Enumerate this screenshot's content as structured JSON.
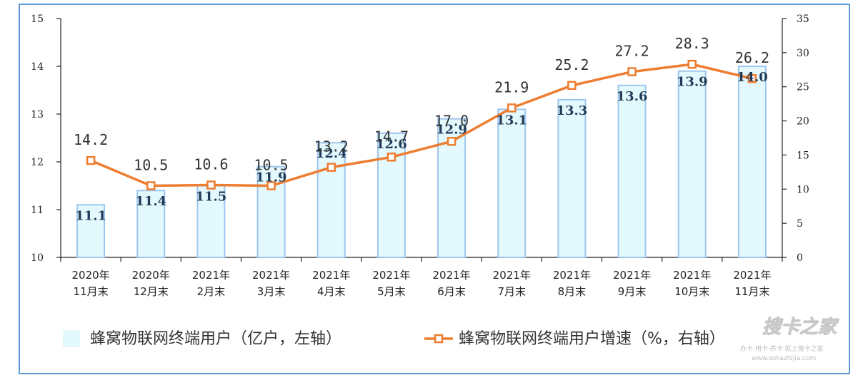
{
  "chart_data": {
    "type": "bar",
    "categories": [
      [
        "2020年",
        "11月末"
      ],
      [
        "2020年",
        "12月末"
      ],
      [
        "2021年",
        "2月末"
      ],
      [
        "2021年",
        "3月末"
      ],
      [
        "2021年",
        "4月末"
      ],
      [
        "2021年",
        "5月末"
      ],
      [
        "2021年",
        "6月末"
      ],
      [
        "2021年",
        "7月末"
      ],
      [
        "2021年",
        "8月末"
      ],
      [
        "2021年",
        "9月末"
      ],
      [
        "2021年",
        "10月末"
      ],
      [
        "2021年",
        "11月末"
      ]
    ],
    "series": [
      {
        "name": "蜂窝物联网终端用户（亿户，左轴）",
        "type": "bar",
        "axis": "left",
        "values": [
          11.1,
          11.4,
          11.5,
          11.9,
          12.4,
          12.6,
          12.9,
          13.1,
          13.3,
          13.6,
          13.9,
          14.0
        ],
        "labels": [
          "11.1",
          "11.4",
          "11.5",
          "11.9",
          "12.4",
          "12.6",
          "12.9",
          "13.1",
          "13.3",
          "13.6",
          "13.9",
          "14.0"
        ],
        "fill": "#e3f9fd",
        "stroke": "#9fc6ee"
      },
      {
        "name": "蜂窝物联网终端用户增速（%，右轴）",
        "type": "line",
        "axis": "right",
        "values": [
          14.2,
          10.5,
          10.6,
          10.5,
          13.2,
          14.7,
          17.0,
          21.9,
          25.2,
          27.2,
          28.3,
          26.2
        ],
        "labels": [
          "14.2",
          "10.5",
          "10.6",
          "10.5",
          "13.2",
          "14.7",
          "17.0",
          "21.9",
          "25.2",
          "27.2",
          "28.3",
          "26.2"
        ],
        "color": "#ed7d31"
      }
    ],
    "y_left": {
      "min": 10,
      "max": 15,
      "ticks": [
        "10",
        "11",
        "12",
        "13",
        "14",
        "15"
      ]
    },
    "y_right": {
      "min": 0,
      "max": 35,
      "ticks": [
        "0",
        "5",
        "10",
        "15",
        "20",
        "25",
        "30",
        "35"
      ]
    },
    "grid": false,
    "legend": "bottom"
  },
  "watermark": {
    "brand": "搜卡之家",
    "tagline": "办卡·用卡·养卡·就上搜卡之家",
    "url": "www.sokazhijia.com"
  }
}
